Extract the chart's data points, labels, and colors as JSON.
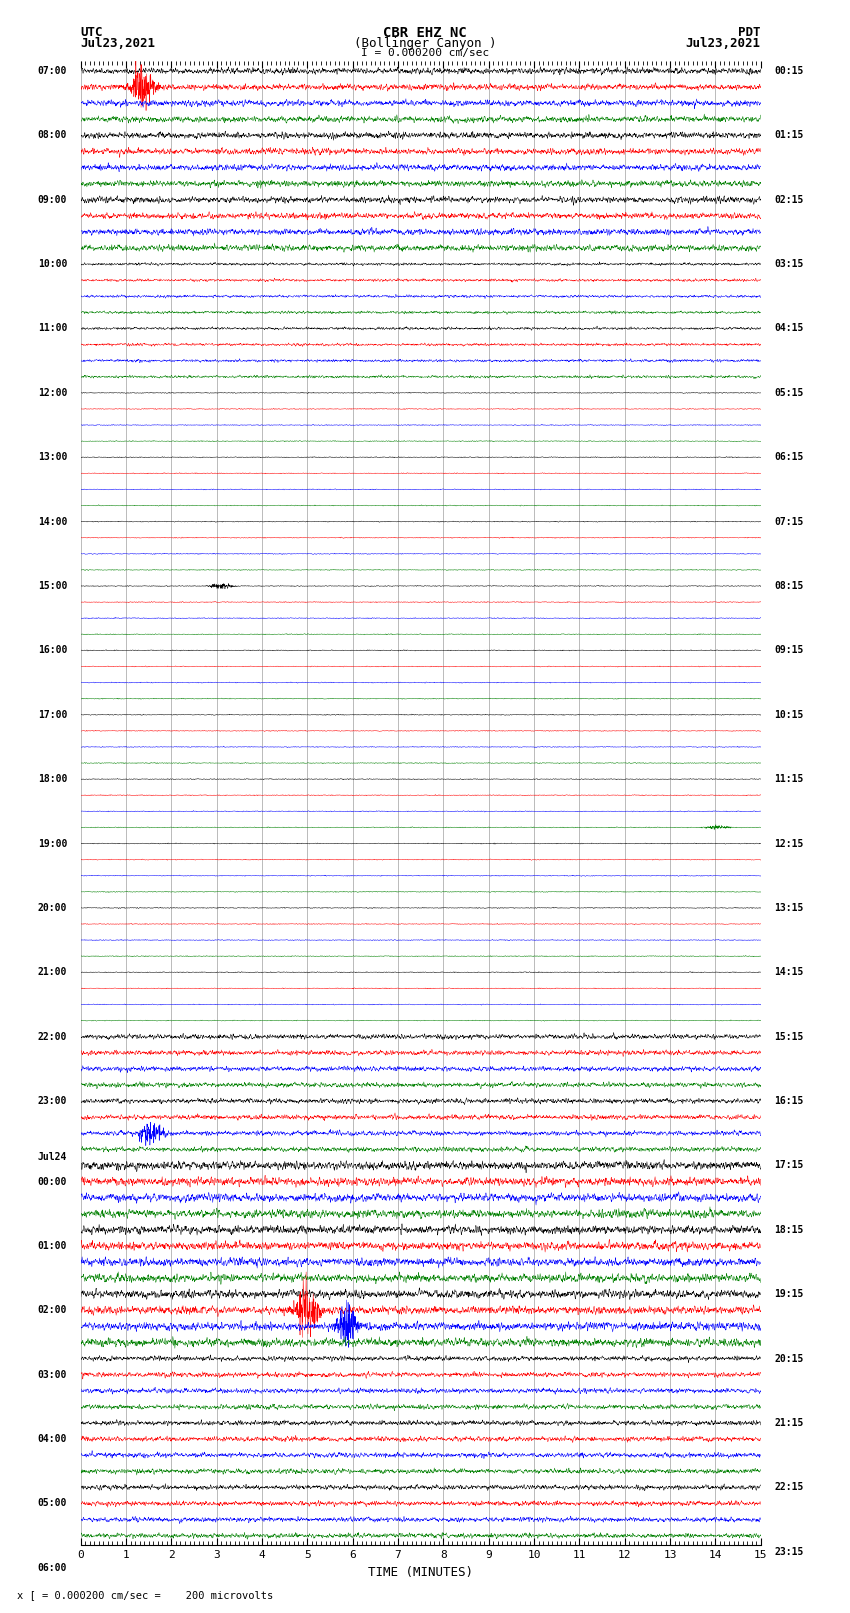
{
  "title_line1": "CBR EHZ NC",
  "title_line2": "(Bollinger Canyon )",
  "scale_label": "I = 0.000200 cm/sec",
  "left_label_top": "UTC",
  "left_label_date": "Jul23,2021",
  "right_label_top": "PDT",
  "right_label_date": "Jul23,2021",
  "bottom_label": "TIME (MINUTES)",
  "bottom_note": "x [ = 0.000200 cm/sec =    200 microvolts",
  "xlabel_ticks": [
    0,
    1,
    2,
    3,
    4,
    5,
    6,
    7,
    8,
    9,
    10,
    11,
    12,
    13,
    14,
    15
  ],
  "utc_times_left": [
    "07:00",
    "",
    "",
    "",
    "08:00",
    "",
    "",
    "",
    "09:00",
    "",
    "",
    "",
    "10:00",
    "",
    "",
    "",
    "11:00",
    "",
    "",
    "",
    "12:00",
    "",
    "",
    "",
    "13:00",
    "",
    "",
    "",
    "14:00",
    "",
    "",
    "",
    "15:00",
    "",
    "",
    "",
    "16:00",
    "",
    "",
    "",
    "17:00",
    "",
    "",
    "",
    "18:00",
    "",
    "",
    "",
    "19:00",
    "",
    "",
    "",
    "20:00",
    "",
    "",
    "",
    "21:00",
    "",
    "",
    "",
    "22:00",
    "",
    "",
    "",
    "23:00",
    "",
    "",
    "",
    "Jul24",
    "00:00",
    "",
    "",
    "",
    "01:00",
    "",
    "",
    "",
    "02:00",
    "",
    "",
    "",
    "03:00",
    "",
    "",
    "",
    "04:00",
    "",
    "",
    "",
    "05:00",
    "",
    "",
    "",
    "06:00",
    "",
    "",
    ""
  ],
  "pdt_times_right": [
    "00:15",
    "",
    "",
    "",
    "01:15",
    "",
    "",
    "",
    "02:15",
    "",
    "",
    "",
    "03:15",
    "",
    "",
    "",
    "04:15",
    "",
    "",
    "",
    "05:15",
    "",
    "",
    "",
    "06:15",
    "",
    "",
    "",
    "07:15",
    "",
    "",
    "",
    "08:15",
    "",
    "",
    "",
    "09:15",
    "",
    "",
    "",
    "10:15",
    "",
    "",
    "",
    "11:15",
    "",
    "",
    "",
    "12:15",
    "",
    "",
    "",
    "13:15",
    "",
    "",
    "",
    "14:15",
    "",
    "",
    "",
    "15:15",
    "",
    "",
    "",
    "16:15",
    "",
    "",
    "",
    "17:15",
    "",
    "",
    "",
    "18:15",
    "",
    "",
    "",
    "19:15",
    "",
    "",
    "",
    "20:15",
    "",
    "",
    "",
    "21:15",
    "",
    "",
    "",
    "22:15",
    "",
    "",
    "",
    "23:15",
    "",
    "",
    ""
  ],
  "n_rows": 92,
  "trace_colors_cycle": [
    "black",
    "red",
    "blue",
    "green"
  ],
  "fig_width": 8.5,
  "fig_height": 16.13,
  "bg_color": "white",
  "trace_lw": 0.35,
  "x_min": 0,
  "x_max": 15,
  "n_points": 3000,
  "noise_amplitude_rows": {
    "high_early": [
      0,
      1,
      2,
      3,
      4,
      5,
      6,
      7,
      8,
      9,
      10,
      11
    ],
    "medium_early": [
      12,
      13,
      14,
      15,
      16,
      17,
      18,
      19
    ],
    "medium_late": [
      60,
      61,
      62,
      63,
      64,
      65,
      66,
      67,
      68,
      69,
      70,
      71,
      72,
      73,
      74,
      75,
      76,
      77,
      78,
      79,
      80,
      81,
      82,
      83,
      84,
      85,
      86,
      87,
      88,
      89,
      90,
      91
    ]
  },
  "amplitude_high": 0.28,
  "amplitude_medium_early": 0.12,
  "amplitude_medium_late": 0.22,
  "amplitude_low": 0.04,
  "very_high_rows": [
    68,
    69,
    70,
    71,
    72,
    73,
    74,
    75,
    76,
    77,
    78,
    79
  ],
  "amplitude_very_high": 0.38
}
